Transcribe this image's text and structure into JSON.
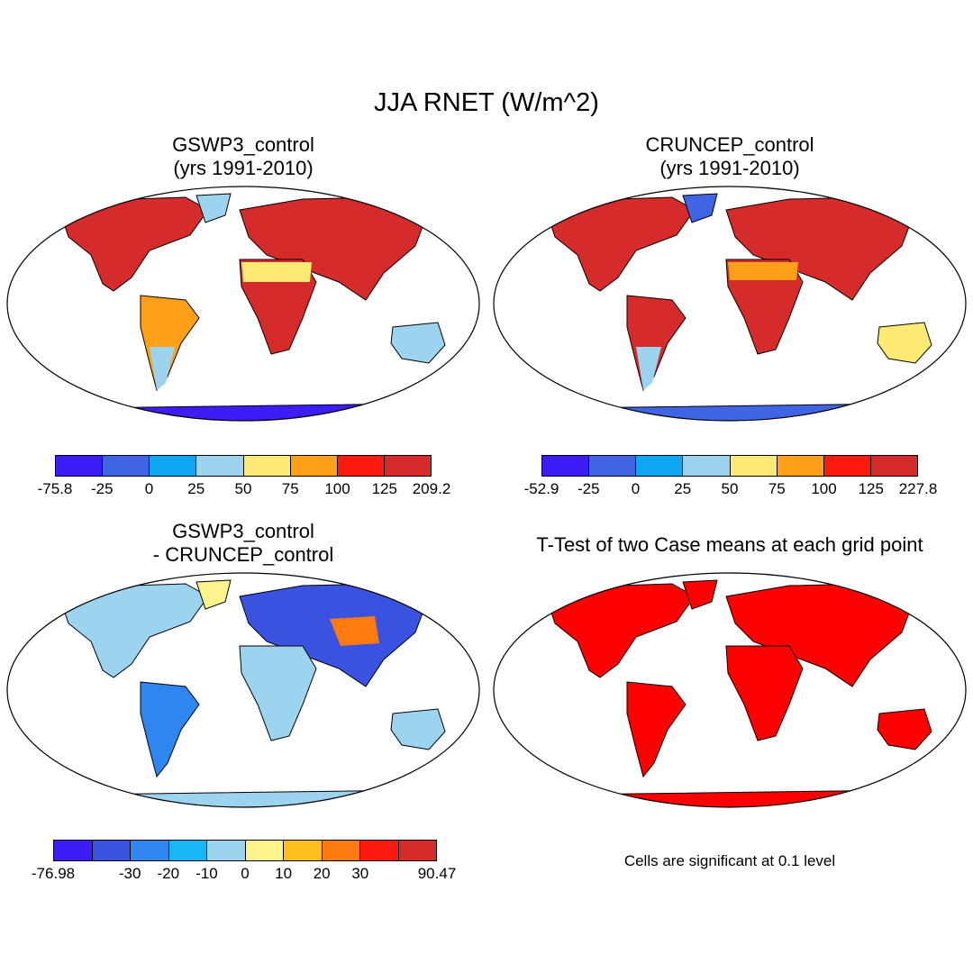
{
  "figure": {
    "title": "JJA RNET (W/m^2)"
  },
  "panels": [
    {
      "id": "gswp3",
      "title": "GSWP3_control\n(yrs 1991-2010)"
    },
    {
      "id": "cruncep",
      "title": "CRUNCEP_control\n(yrs 1991-2010)"
    },
    {
      "id": "diff",
      "title": "GSWP3_control\n- CRUNCEP_control"
    },
    {
      "id": "ttest",
      "title": "T-Test of two Case means at each grid point",
      "note": "Cells are significant at 0.1 level",
      "significant_color": "#ff0000"
    }
  ],
  "colorbars": [
    {
      "id": "gswp3",
      "colors": [
        "#3d1cf5",
        "#3f64e4",
        "#0fa6f2",
        "#9cd3ee",
        "#fdea75",
        "#ffa118",
        "#ff1a0f",
        "#d62b2b"
      ],
      "labels": [
        "-75.8",
        "-25",
        "0",
        "25",
        "50",
        "75",
        "100",
        "125",
        "209.2"
      ]
    },
    {
      "id": "cruncep",
      "colors": [
        "#3d1cf5",
        "#3f64e4",
        "#0fa6f2",
        "#9cd3ee",
        "#fdea75",
        "#ffa118",
        "#ff1a0f",
        "#d62b2b"
      ],
      "labels": [
        "-52.9",
        "-25",
        "0",
        "25",
        "50",
        "75",
        "100",
        "125",
        "227.8"
      ]
    },
    {
      "id": "diff",
      "colors": [
        "#3d1cf5",
        "#3a52e0",
        "#2f86ef",
        "#19b8f4",
        "#9cd3ee",
        "#fdf38d",
        "#ffbe1c",
        "#ff7a0f",
        "#ff1a0f",
        "#d62b2b"
      ],
      "labels": [
        "-76.98",
        "",
        "-30",
        "-20",
        "-10",
        "0",
        "10",
        "20",
        "30",
        "",
        "90.47"
      ]
    }
  ]
}
